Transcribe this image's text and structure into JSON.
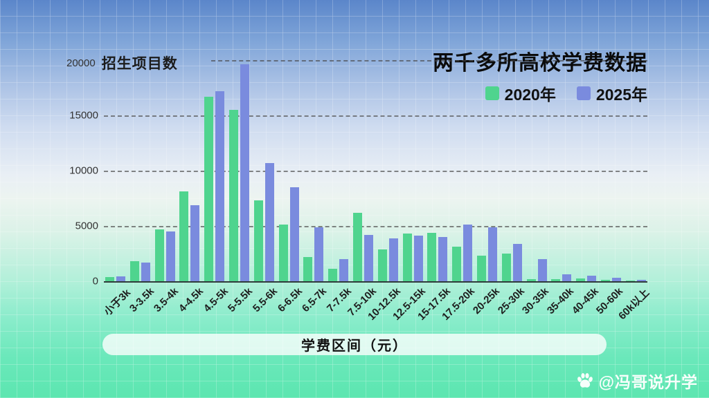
{
  "title": "两千多所高校学费数据",
  "legend": [
    {
      "label": "2020年",
      "color": "#4fd48e"
    },
    {
      "label": "2025年",
      "color": "#7a8bde"
    }
  ],
  "y_axis": {
    "label": "招生项目数",
    "ticks": [
      0,
      5000,
      10000,
      15000,
      20000
    ],
    "max": 20000
  },
  "x_axis": {
    "label": "学费区间（元）"
  },
  "watermark": {
    "icon": "baidu-paw-icon",
    "text": "@冯哥说升学"
  },
  "colors": {
    "bar_2020": "#4fd48e",
    "bar_2025": "#7a8bde",
    "bg_top": "#5b86ca",
    "bg_bottom": "#5ce6b0"
  },
  "chart_data": {
    "type": "bar",
    "title": "两千多所高校学费数据",
    "xlabel": "学费区间（元）",
    "ylabel": "招生项目数",
    "ylim": [
      0,
      20000
    ],
    "grid": true,
    "legend_position": "top-right",
    "categories": [
      "小于3k",
      "3-3.5k",
      "3.5-4k",
      "4-4.5k",
      "4.5-5k",
      "5-5.5k",
      "5.5-6k",
      "6-6.5k",
      "6.5-7k",
      "7-7.5k",
      "7.5-10k",
      "10-12.5k",
      "12.5-15k",
      "15-17.5k",
      "17.5-20k",
      "20-25k",
      "25-30k",
      "30-35k",
      "35-40k",
      "40-45k",
      "50-60k",
      "60k以上"
    ],
    "series": [
      {
        "name": "2020年",
        "color": "#4fd48e",
        "values": [
          350,
          1800,
          4700,
          8100,
          16700,
          15500,
          7300,
          5100,
          2200,
          1100,
          6200,
          2900,
          4300,
          4400,
          3100,
          2300,
          2500,
          200,
          200,
          250,
          100,
          50
        ]
      },
      {
        "name": "2025年",
        "color": "#7a8bde",
        "values": [
          450,
          1700,
          4500,
          6900,
          17200,
          19600,
          10700,
          8500,
          4900,
          2000,
          4200,
          3900,
          4100,
          4000,
          5100,
          4900,
          3400,
          2000,
          650,
          520,
          310,
          150
        ]
      }
    ]
  }
}
